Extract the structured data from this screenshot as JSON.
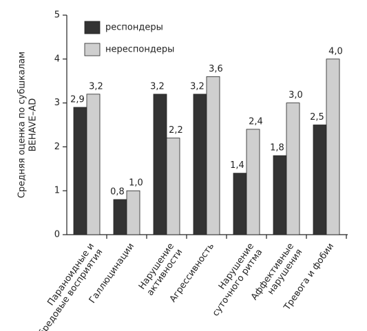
{
  "chart_data": {
    "type": "bar",
    "y_label": [
      "Средняя оценка по субшкалам",
      "BEHAVE–AD"
    ],
    "categories": [
      [
        "Параноидные и",
        "бредовые восприятия"
      ],
      [
        "Галлюцинации"
      ],
      [
        "Нарушение",
        "активности"
      ],
      [
        "Агрессивность"
      ],
      [
        "Нарушение",
        "суточного ритма"
      ],
      [
        "Аффективные",
        "нарушения"
      ],
      [
        "Тревога и фобии"
      ]
    ],
    "series": [
      {
        "name": "респондеры",
        "color": "#333333",
        "values": [
          2.9,
          0.8,
          3.2,
          3.2,
          1.4,
          1.8,
          2.5
        ],
        "value_labels": [
          "2,9",
          "0,8",
          "3,2",
          "3,2",
          "1,4",
          "1,8",
          "2,5"
        ]
      },
      {
        "name": "нереспондеры",
        "color": "#cfcfcf",
        "values": [
          3.2,
          1.0,
          2.2,
          3.6,
          2.4,
          3.0,
          4.0
        ],
        "value_labels": [
          "3,2",
          "1,0",
          "2,2",
          "3,6",
          "2,4",
          "3,0",
          "4,0"
        ]
      }
    ],
    "ylim": [
      0,
      5
    ],
    "yticks": [
      0,
      1,
      2,
      3,
      4,
      5
    ],
    "legend": "upper-left",
    "grid": false
  }
}
